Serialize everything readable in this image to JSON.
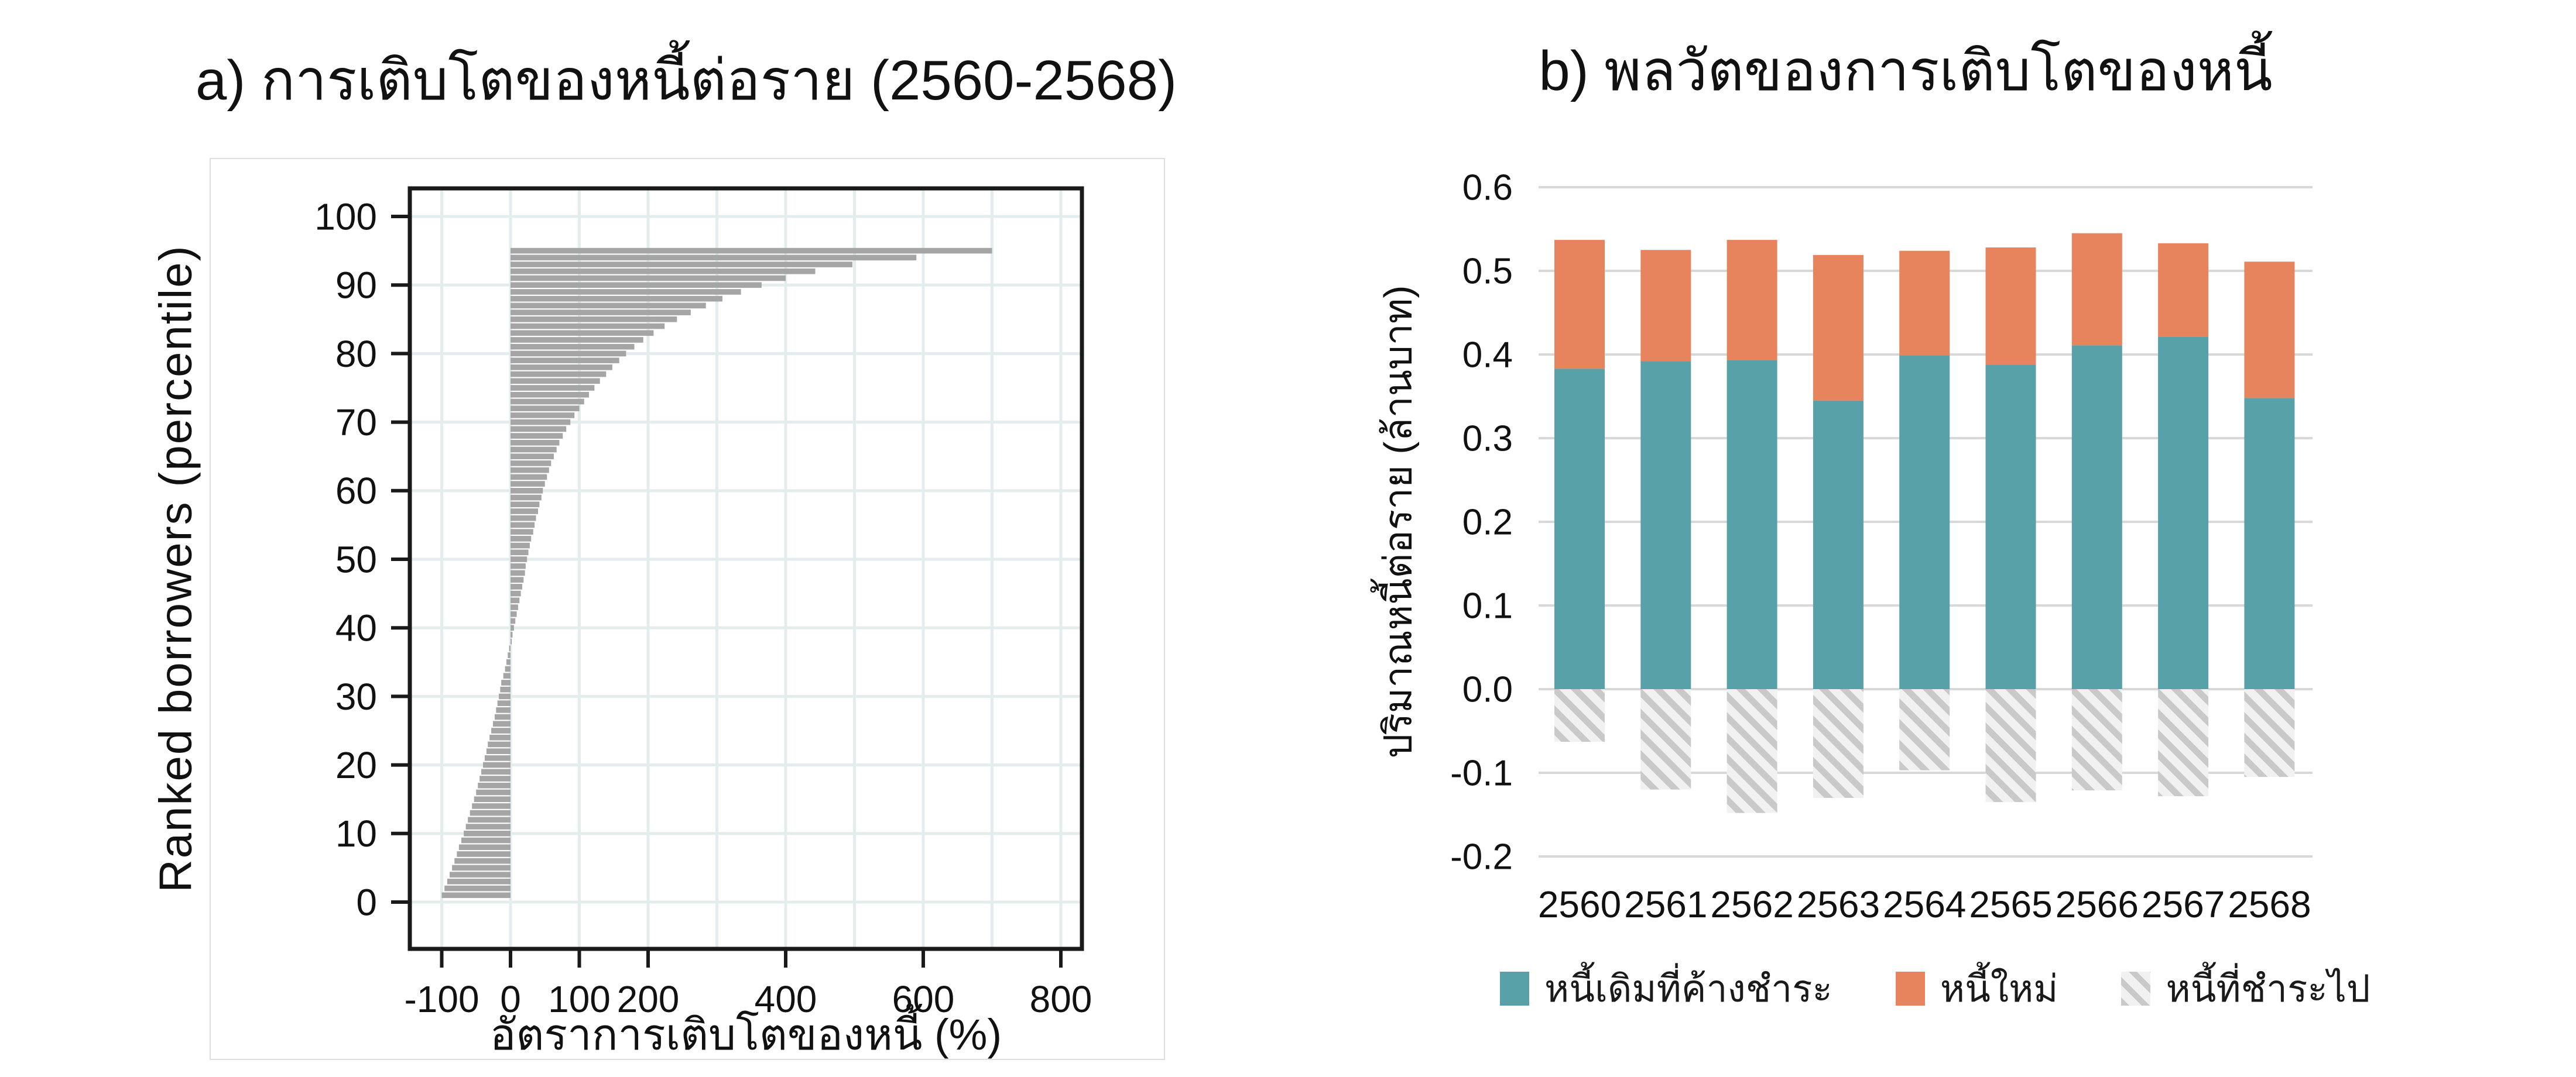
{
  "figure_background": "#ffffff",
  "chart_data": [
    {
      "type": "bar",
      "orientation": "horizontal",
      "panel": "a",
      "title": "a) การเติบโตของหนี้ต่อราย (2560-2568)",
      "xlabel": "อัตราการเติบโตของหนี้ (%)",
      "ylabel": "Ranked borrowers (percentile)",
      "xlim": [
        -146,
        832
      ],
      "ylim": [
        -6.8,
        104.2
      ],
      "x_ticks": [
        -100,
        0,
        100,
        200,
        400,
        600,
        800
      ],
      "y_ticks": [
        0,
        10,
        20,
        30,
        40,
        50,
        60,
        70,
        80,
        90,
        100
      ],
      "grid": true,
      "gridline_x_step": 100,
      "gridline_color": "#e3eded",
      "frame_color": "#1a1a1a",
      "bar_color": "#a5a5a5",
      "percentile_start": 1,
      "values": [
        -100,
        -96,
        -92,
        -88.5,
        -85,
        -81.5,
        -78,
        -75,
        -71.5,
        -68,
        -65,
        -62,
        -59,
        -56,
        -53,
        -50,
        -47.5,
        -45,
        -42.5,
        -40,
        -37.5,
        -35,
        -33,
        -30.5,
        -28,
        -25.5,
        -23,
        -21,
        -19,
        -17,
        -15,
        -13.5,
        -10.5,
        -8,
        -6,
        -4,
        -2,
        1,
        3,
        5,
        7,
        9,
        11,
        13,
        15,
        17,
        19,
        21,
        22,
        24,
        26,
        28,
        30,
        33,
        35,
        37,
        40,
        42,
        45,
        47,
        50,
        53,
        56,
        59,
        63,
        67,
        71,
        76,
        81,
        87,
        93,
        100,
        107,
        114,
        122,
        130,
        139,
        148,
        158,
        168,
        180,
        193,
        208,
        224,
        242,
        262,
        284,
        308,
        335,
        365,
        400,
        443,
        497,
        590,
        700
      ]
    },
    {
      "type": "stacked-bar",
      "panel": "b",
      "title": "b) พลวัตของการเติบโตของหนี้",
      "xlabel": "",
      "ylabel": "ปริมาณหนี้ต่อราย (ล้านบาท)",
      "categories": [
        "2560",
        "2561",
        "2562",
        "2563",
        "2564",
        "2565",
        "2566",
        "2567",
        "2568"
      ],
      "ylim": [
        -0.2,
        0.6
      ],
      "y_tick_labels": [
        "0.6",
        "0.5",
        "0.4",
        "0.3",
        "0.2",
        "0.1",
        "0.0",
        "-0.1",
        "-0.2"
      ],
      "grid": true,
      "gridline_color": "#d8d8d8",
      "legend_position": "bottom",
      "series": [
        {
          "name": "หนี้เดิมที่ค้างชำระ",
          "color": "#58a1a9",
          "style": "solid",
          "values": [
            0.383,
            0.392,
            0.393,
            0.345,
            0.399,
            0.388,
            0.411,
            0.421,
            0.348
          ]
        },
        {
          "name": "หนี้ใหม่",
          "color": "#e8845d",
          "style": "solid",
          "values": [
            0.154,
            0.133,
            0.144,
            0.174,
            0.125,
            0.14,
            0.134,
            0.112,
            0.163
          ]
        },
        {
          "name": "หนี้ที่ชำระไป",
          "color": "#c9c9c9",
          "style": "hatched",
          "hatch_background": "#f1f1f1",
          "values": [
            -0.063,
            -0.12,
            -0.148,
            -0.13,
            -0.097,
            -0.135,
            -0.121,
            -0.128,
            -0.105
          ]
        }
      ]
    }
  ]
}
